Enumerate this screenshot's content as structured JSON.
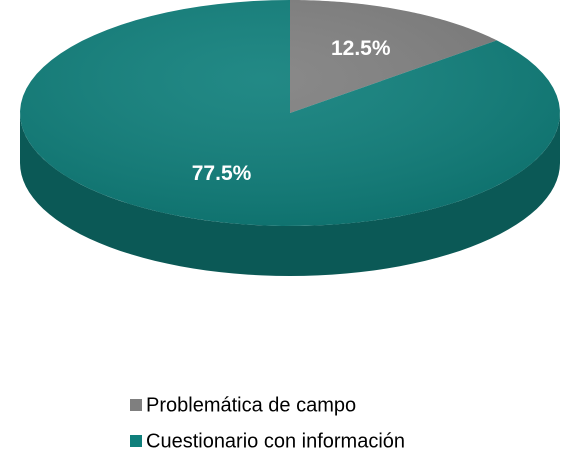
{
  "chart_data": {
    "type": "pie",
    "categories": [
      "Problemática de campo",
      "Cuestionario con información"
    ],
    "values": [
      12.5,
      77.5
    ],
    "value_labels": [
      "12.5%",
      "77.5%"
    ],
    "colors": [
      "#7f7f7f",
      "#0f7f7b"
    ],
    "legend": "bottom"
  }
}
